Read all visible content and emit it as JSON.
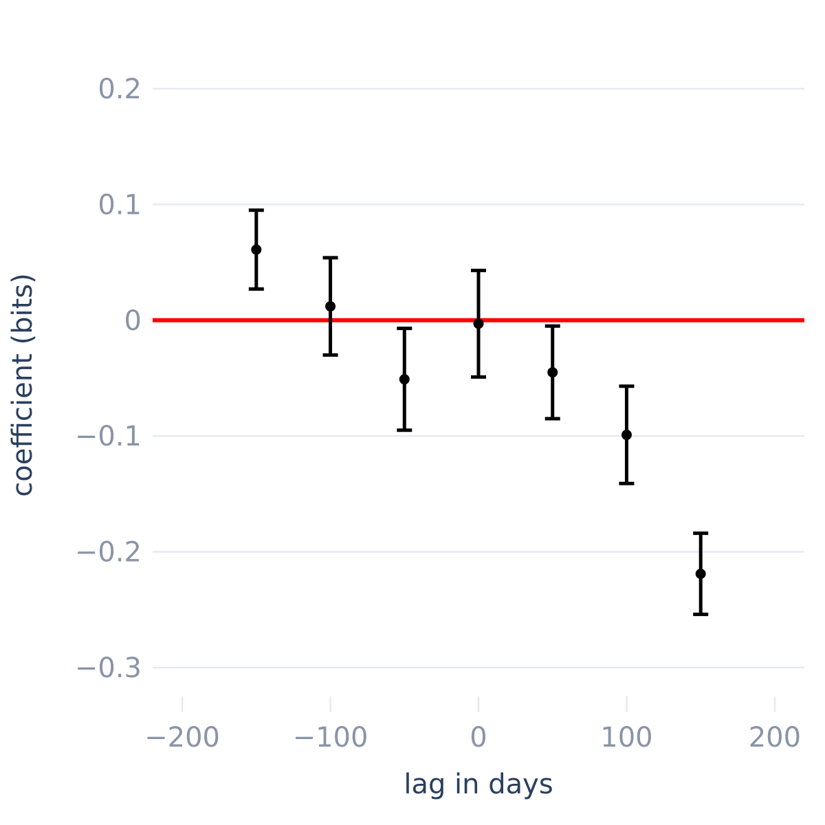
{
  "chart_data": {
    "type": "scatter",
    "title": "",
    "xlabel": "lag in days",
    "ylabel": "coefficient (bits)",
    "xlim": [
      -220,
      220
    ],
    "ylim": [
      -0.335,
      0.235
    ],
    "x_ticks": [
      -200,
      -100,
      0,
      100,
      200
    ],
    "x_tick_labels": [
      "−200",
      "−100",
      "0",
      "100",
      "200"
    ],
    "y_ticks": [
      -0.3,
      -0.2,
      -0.1,
      0,
      0.1,
      0.2
    ],
    "y_tick_labels": [
      "−0.3",
      "−0.2",
      "−0.1",
      "0",
      "0.1",
      "0.2"
    ],
    "grid": true,
    "reference_line": {
      "y": 0,
      "color": "#ff0000"
    },
    "point_color": "#000000",
    "points": [
      {
        "x": -150,
        "y": 0.061,
        "err_low": 0.027,
        "err_high": 0.095
      },
      {
        "x": -100,
        "y": 0.012,
        "err_low": -0.03,
        "err_high": 0.054
      },
      {
        "x": -50,
        "y": -0.051,
        "err_low": -0.095,
        "err_high": -0.007
      },
      {
        "x": 0,
        "y": -0.003,
        "err_low": -0.049,
        "err_high": 0.043
      },
      {
        "x": 50,
        "y": -0.045,
        "err_low": -0.085,
        "err_high": -0.005
      },
      {
        "x": 100,
        "y": -0.099,
        "err_low": -0.141,
        "err_high": -0.057
      },
      {
        "x": 150,
        "y": -0.219,
        "err_low": -0.254,
        "err_high": -0.184
      }
    ]
  }
}
